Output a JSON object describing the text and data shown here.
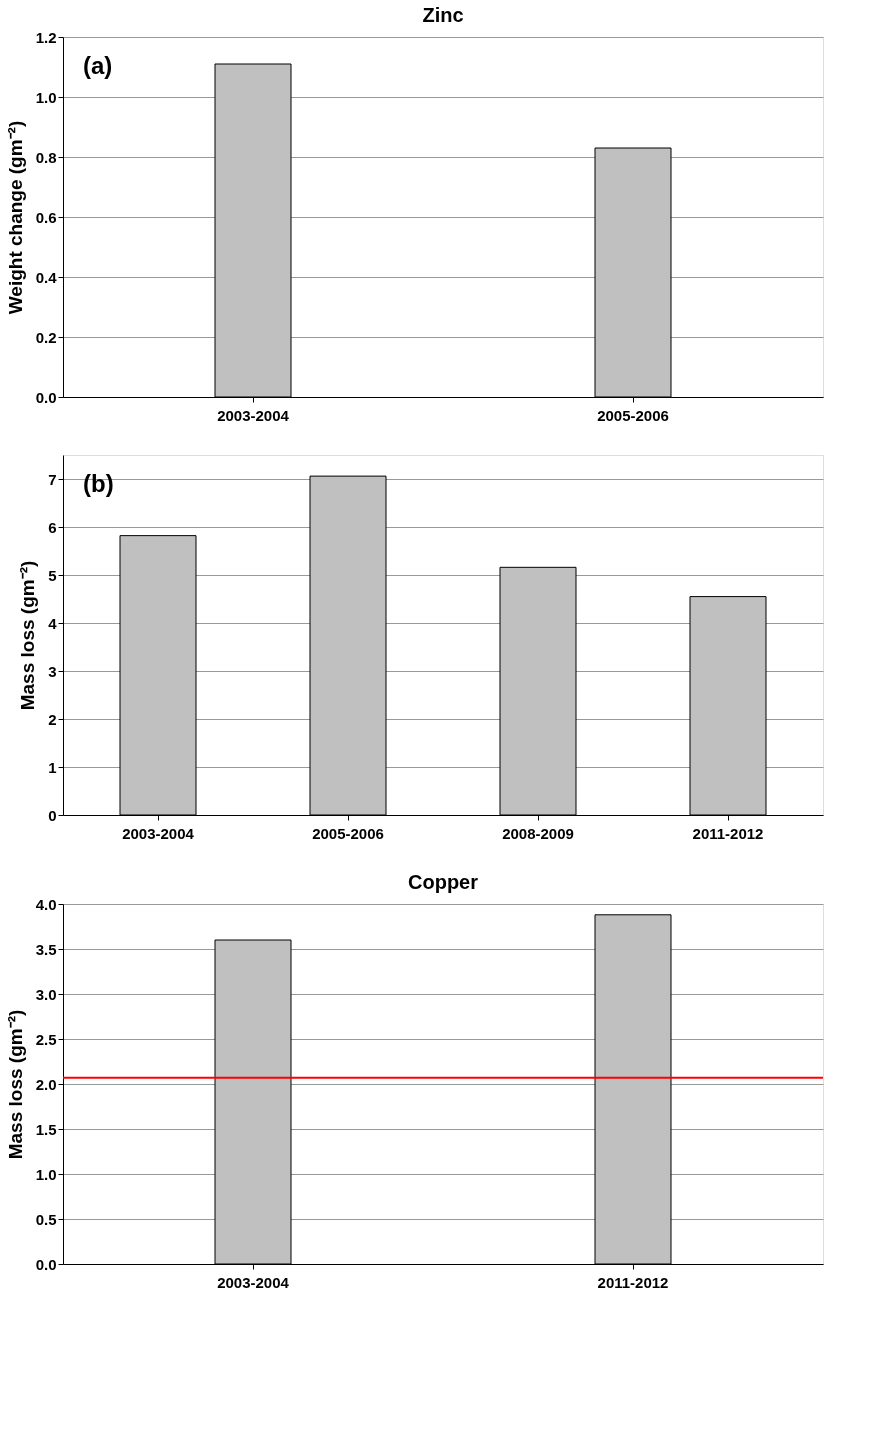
{
  "chart_data": [
    {
      "type": "bar",
      "title": "Zinc",
      "ylabel": "Weight change (gm⁻²)",
      "annotations": [
        "(a)"
      ],
      "categories": [
        "2003-2004",
        "2005-2006"
      ],
      "values": [
        1.11,
        0.83
      ],
      "color": "#c0c0c0",
      "ylim": [
        0,
        1.2
      ],
      "yticks": [
        {
          "value": 0,
          "label": "0.0"
        },
        0.2,
        0.4,
        0.6,
        0.8,
        {
          "value": 1,
          "label": "1.0"
        },
        1.2
      ],
      "grid": "y"
    },
    {
      "type": "bar",
      "ylabel": "Mass loss (gm⁻²)",
      "annotations": [
        "(b)"
      ],
      "categories": [
        "2003-2004",
        "2005-2006",
        "2008-2009",
        "2011-2012"
      ],
      "values": [
        5.82,
        7.06,
        5.16,
        4.55
      ],
      "color": "#c0c0c0",
      "ylim": [
        0,
        7.5
      ],
      "yticks": [
        0,
        1,
        2,
        3,
        4,
        5,
        6,
        7
      ],
      "grid": "y"
    },
    {
      "type": "bar",
      "title": "Copper",
      "ylabel": "Mass loss (gm⁻²)",
      "categories": [
        "2003-2004",
        "2011-2012"
      ],
      "values": [
        3.6,
        3.88
      ],
      "color": "#c0c0c0",
      "ylim": [
        0,
        4.0
      ],
      "yticks": [
        {
          "value": 0,
          "label": "0.0"
        },
        0.5,
        {
          "value": 1,
          "label": "1.0"
        },
        1.5,
        {
          "value": 2,
          "label": "2.0"
        },
        2.5,
        {
          "value": 3,
          "label": "3.0"
        },
        3.5,
        {
          "value": 4,
          "label": "4.0"
        }
      ],
      "grid": "y",
      "ref_lines": [
        {
          "axis": "y",
          "value": 2.07,
          "color": "#ff0000"
        }
      ]
    }
  ]
}
